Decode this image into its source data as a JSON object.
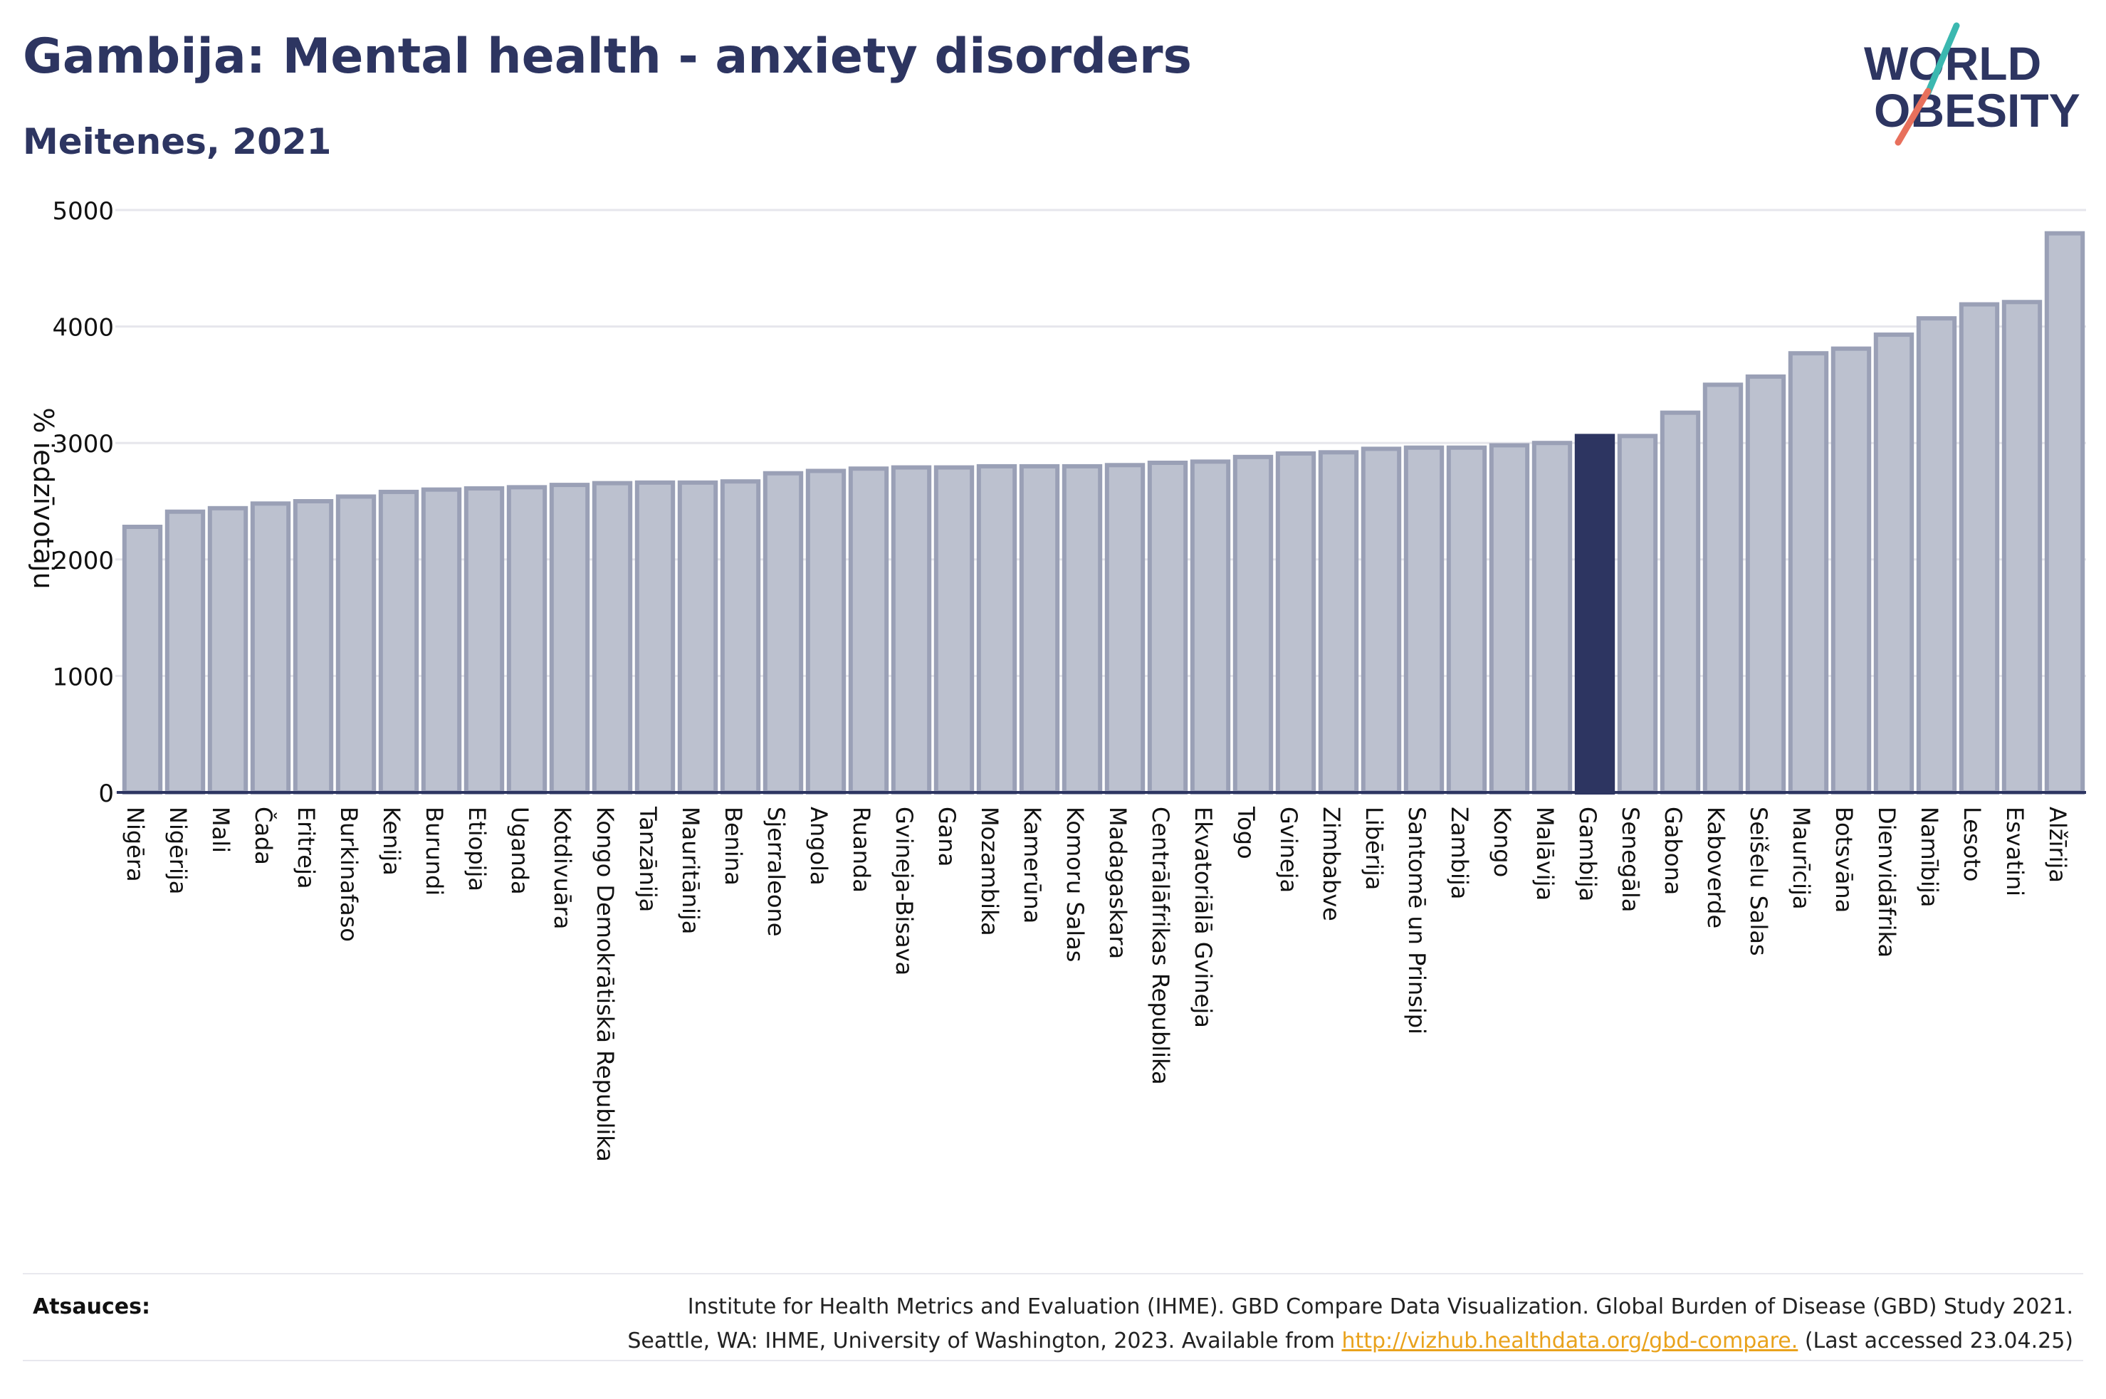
{
  "header": {
    "title": "Gambija: Mental health - anxiety disorders",
    "subtitle": "Meitenes, 2021"
  },
  "logo": {
    "line1": "WORLD",
    "line2": "OBESITY",
    "colors": {
      "text": "#2d3561",
      "slash_teal": "#3bb8b0",
      "slash_coral": "#e8705c"
    }
  },
  "chart_data": {
    "type": "bar",
    "title": "Gambija: Mental health - anxiety disorders",
    "subtitle": "Meitenes, 2021",
    "ylabel": "% iedzīvotāju",
    "xlabel": "",
    "ylim": [
      0,
      5000
    ],
    "yticks": [
      0,
      1000,
      2000,
      3000,
      4000,
      5000
    ],
    "grid": true,
    "highlight": "Gambija",
    "colors": {
      "bar": "#bcc1cf",
      "bar_edge": "#9aa0b6",
      "highlight": "#2d3561",
      "grid": "#e6e6ec",
      "axis": "#2d3561"
    },
    "categories": [
      "Nigēra",
      "Nigērija",
      "Mali",
      "Čada",
      "Eritreja",
      "Burkinafaso",
      "Kenija",
      "Burundi",
      "Etiopija",
      "Uganda",
      "Kotdivuāra",
      "Kongo Demokrātiskā Republika",
      "Tanzānija",
      "Mauritānija",
      "Benina",
      "Sjerraleone",
      "Angola",
      "Ruanda",
      "Gvineja-Bisava",
      "Gana",
      "Mozambika",
      "Kamerūna",
      "Komoru Salas",
      "Madagaskara",
      "Centrālāfrikas Republika",
      "Ekvatoriālā Gvineja",
      "Togo",
      "Gvineja",
      "Zimbabve",
      "Libērija",
      "Santomē un Prinsipi",
      "Zambija",
      "Kongo",
      "Malāvija",
      "Gambija",
      "Senegāla",
      "Gabona",
      "Kaboverde",
      "Seišelu Salas",
      "Maurīcija",
      "Botsvāna",
      "Dienvidāfrika",
      "Namībija",
      "Lesoto",
      "Esvatini",
      "Alžīrija"
    ],
    "values": [
      2280,
      2410,
      2440,
      2480,
      2500,
      2540,
      2580,
      2600,
      2610,
      2620,
      2640,
      2655,
      2660,
      2660,
      2670,
      2740,
      2760,
      2780,
      2790,
      2790,
      2800,
      2800,
      2800,
      2810,
      2830,
      2840,
      2880,
      2910,
      2920,
      2950,
      2960,
      2960,
      2980,
      3000,
      3060,
      3060,
      3260,
      3500,
      3570,
      3770,
      3810,
      3930,
      4070,
      4190,
      4210,
      4800
    ]
  },
  "footer": {
    "sources_label": "Atsauces:",
    "source_line1": "Institute for Health Metrics and Evaluation (IHME). GBD Compare Data Visualization. Global Burden of Disease (GBD) Study 2021.",
    "source_line2_pre": "Seattle, WA: IHME, University of Washington, 2023. Available from ",
    "source_link": "http://vizhub.healthdata.org/gbd-compare.",
    "source_line2_post": " (Last accessed 23.04.25)"
  }
}
